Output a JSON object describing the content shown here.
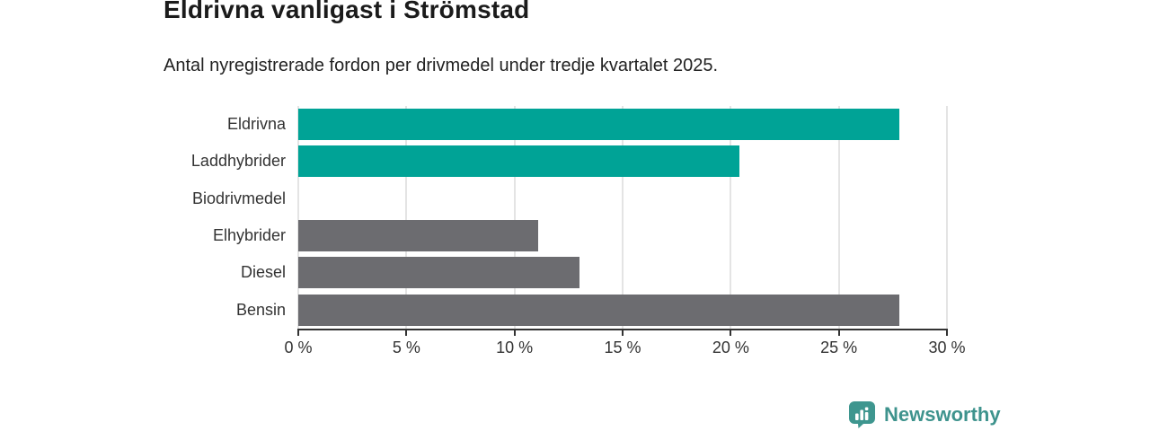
{
  "header": {
    "title": "Eldrivna vanligast i Strömstad",
    "subtitle": "Antal nyregistrerade fordon per drivmedel under tredje kvartalet 2025."
  },
  "chart_data": {
    "type": "bar",
    "orientation": "horizontal",
    "title": "Eldrivna vanligast i Strömstad",
    "subtitle": "Antal nyregistrerade fordon per drivmedel under tredje kvartalet 2025.",
    "categories": [
      "Eldrivna",
      "Laddhybrider",
      "Biodrivmedel",
      "Elhybrider",
      "Diesel",
      "Bensin"
    ],
    "values": [
      27.8,
      20.4,
      0,
      11.1,
      13.0,
      27.8
    ],
    "unit": "%",
    "colors": [
      "#00a396",
      "#00a396",
      "#6c6c70",
      "#6c6c70",
      "#6c6c70",
      "#6c6c70"
    ],
    "xlabel": "",
    "ylabel": "",
    "xlim": [
      0,
      30
    ],
    "xticks": [
      0,
      5,
      10,
      15,
      20,
      25,
      30
    ],
    "xtick_labels": [
      "0 %",
      "5 %",
      "10 %",
      "15 %",
      "20 %",
      "25 %",
      "30 %"
    ],
    "grid": true,
    "legend": false
  },
  "branding": {
    "logo_text": "Newsworthy",
    "logo_color": "#3e938d",
    "icon_name": "newsworthy-bar-chart-bubble-icon",
    "icon_color": "#3e968f"
  },
  "style": {
    "bar_teal": "#00a396",
    "bar_gray": "#6c6c70",
    "gridline_color": "#e4e4e4",
    "axis_color": "#333333",
    "text_color": "#1b1b1b"
  }
}
